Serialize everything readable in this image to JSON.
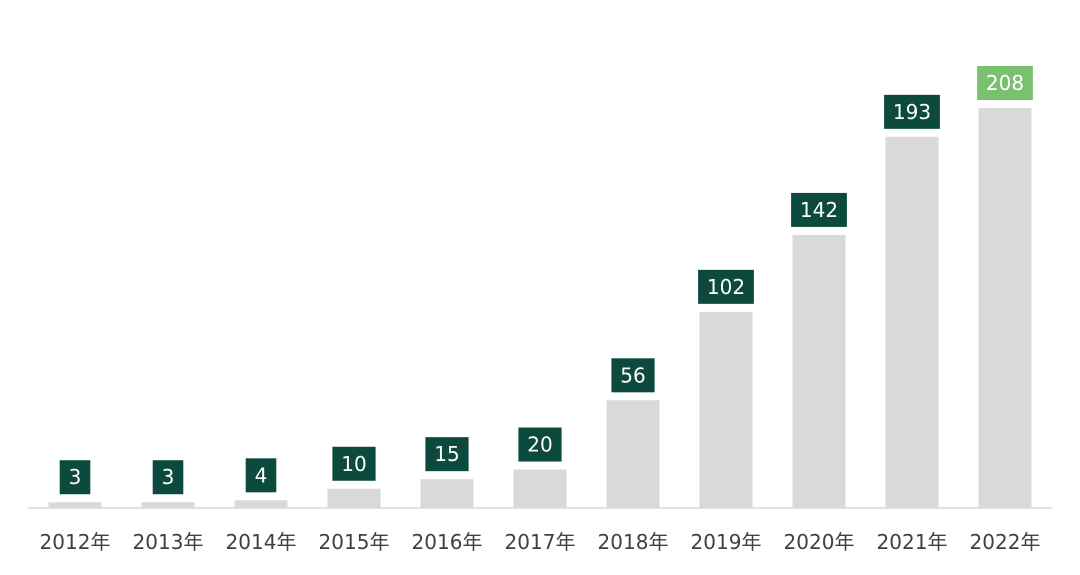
{
  "chart_data": {
    "type": "bar",
    "categories": [
      "2012年",
      "2013年",
      "2014年",
      "2015年",
      "2016年",
      "2017年",
      "2018年",
      "2019年",
      "2020年",
      "2021年",
      "2022年"
    ],
    "values": [
      3,
      3,
      4,
      10,
      15,
      20,
      56,
      102,
      142,
      193,
      208
    ],
    "data_labels": [
      "3",
      "3",
      "4",
      "10",
      "15",
      "20",
      "56",
      "102",
      "142",
      "193",
      "208"
    ],
    "ylim": [
      0,
      208
    ],
    "grid": false,
    "legend": "none",
    "colors": {
      "bar": "#d9d9d9",
      "label_bg": "#0d4a3e",
      "highlight_label_bg": "#79c16f",
      "label_text": "#ffffff",
      "axis": "#d9d9d9",
      "tick_text": "#404040"
    }
  }
}
